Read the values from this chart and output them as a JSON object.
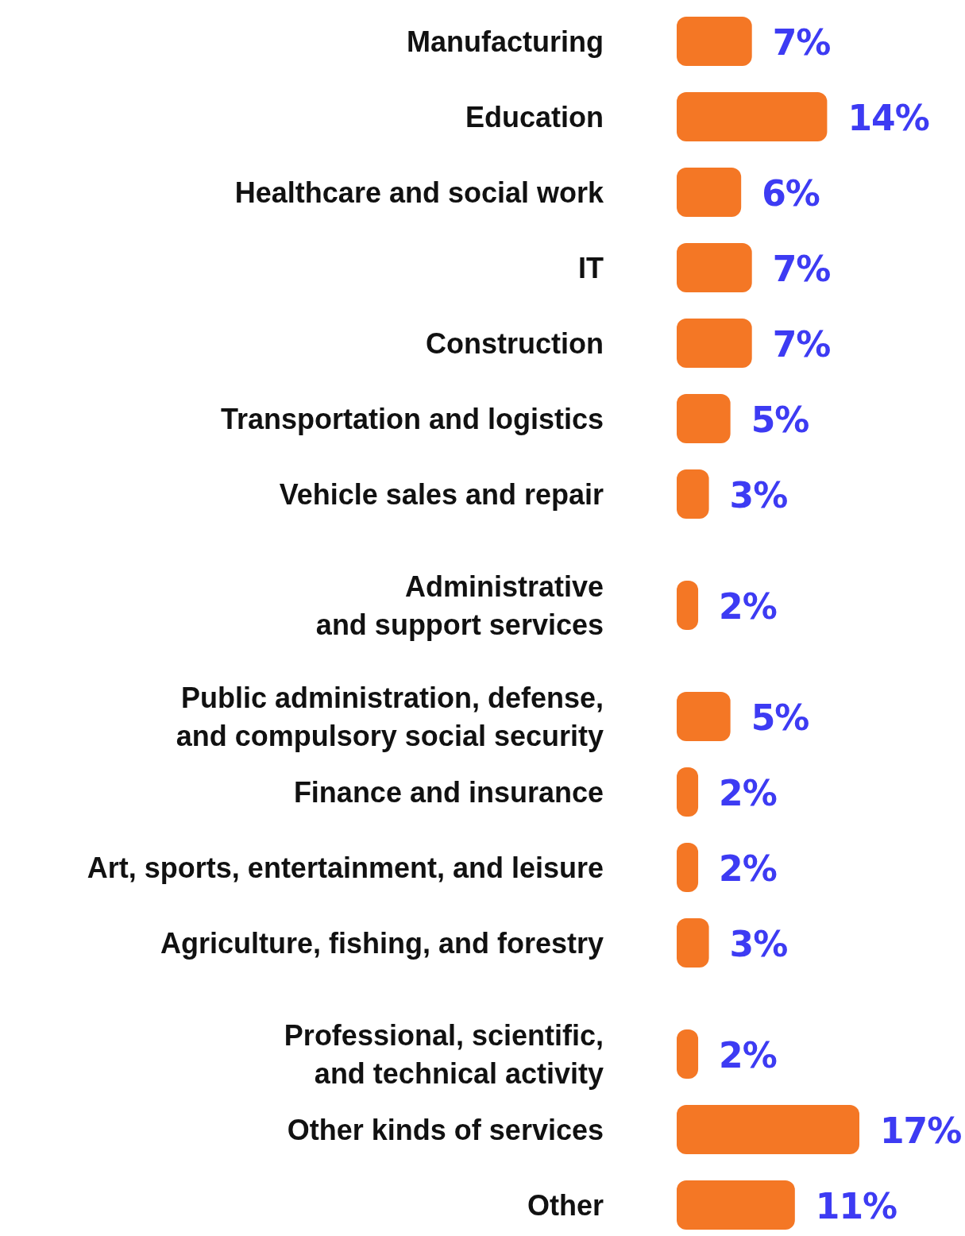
{
  "chart_data": {
    "type": "bar",
    "orientation": "horizontal",
    "categories": [
      "Manufacturing",
      "Education",
      "Healthcare and social work",
      "IT",
      "Construction",
      "Transportation and logistics",
      "Vehicle sales and repair",
      "Administrative\nand support services",
      "Public administration, defense,\nand compulsory social security",
      "Finance and insurance",
      "Art, sports, entertainment, and leisure",
      "Agriculture, fishing, and forestry",
      "Professional, scientific,\nand technical activity",
      "Other kinds of services",
      "Other"
    ],
    "values": [
      7,
      14,
      6,
      7,
      7,
      5,
      3,
      2,
      5,
      2,
      2,
      3,
      2,
      17,
      11
    ],
    "value_labels": [
      "7%",
      "14%",
      "6%",
      "7%",
      "7%",
      "5%",
      "3%",
      "2%",
      "5%",
      "2%",
      "2%",
      "3%",
      "2%",
      "17%",
      "11%"
    ],
    "color": "#f47725",
    "tick_labels": "y"
  }
}
